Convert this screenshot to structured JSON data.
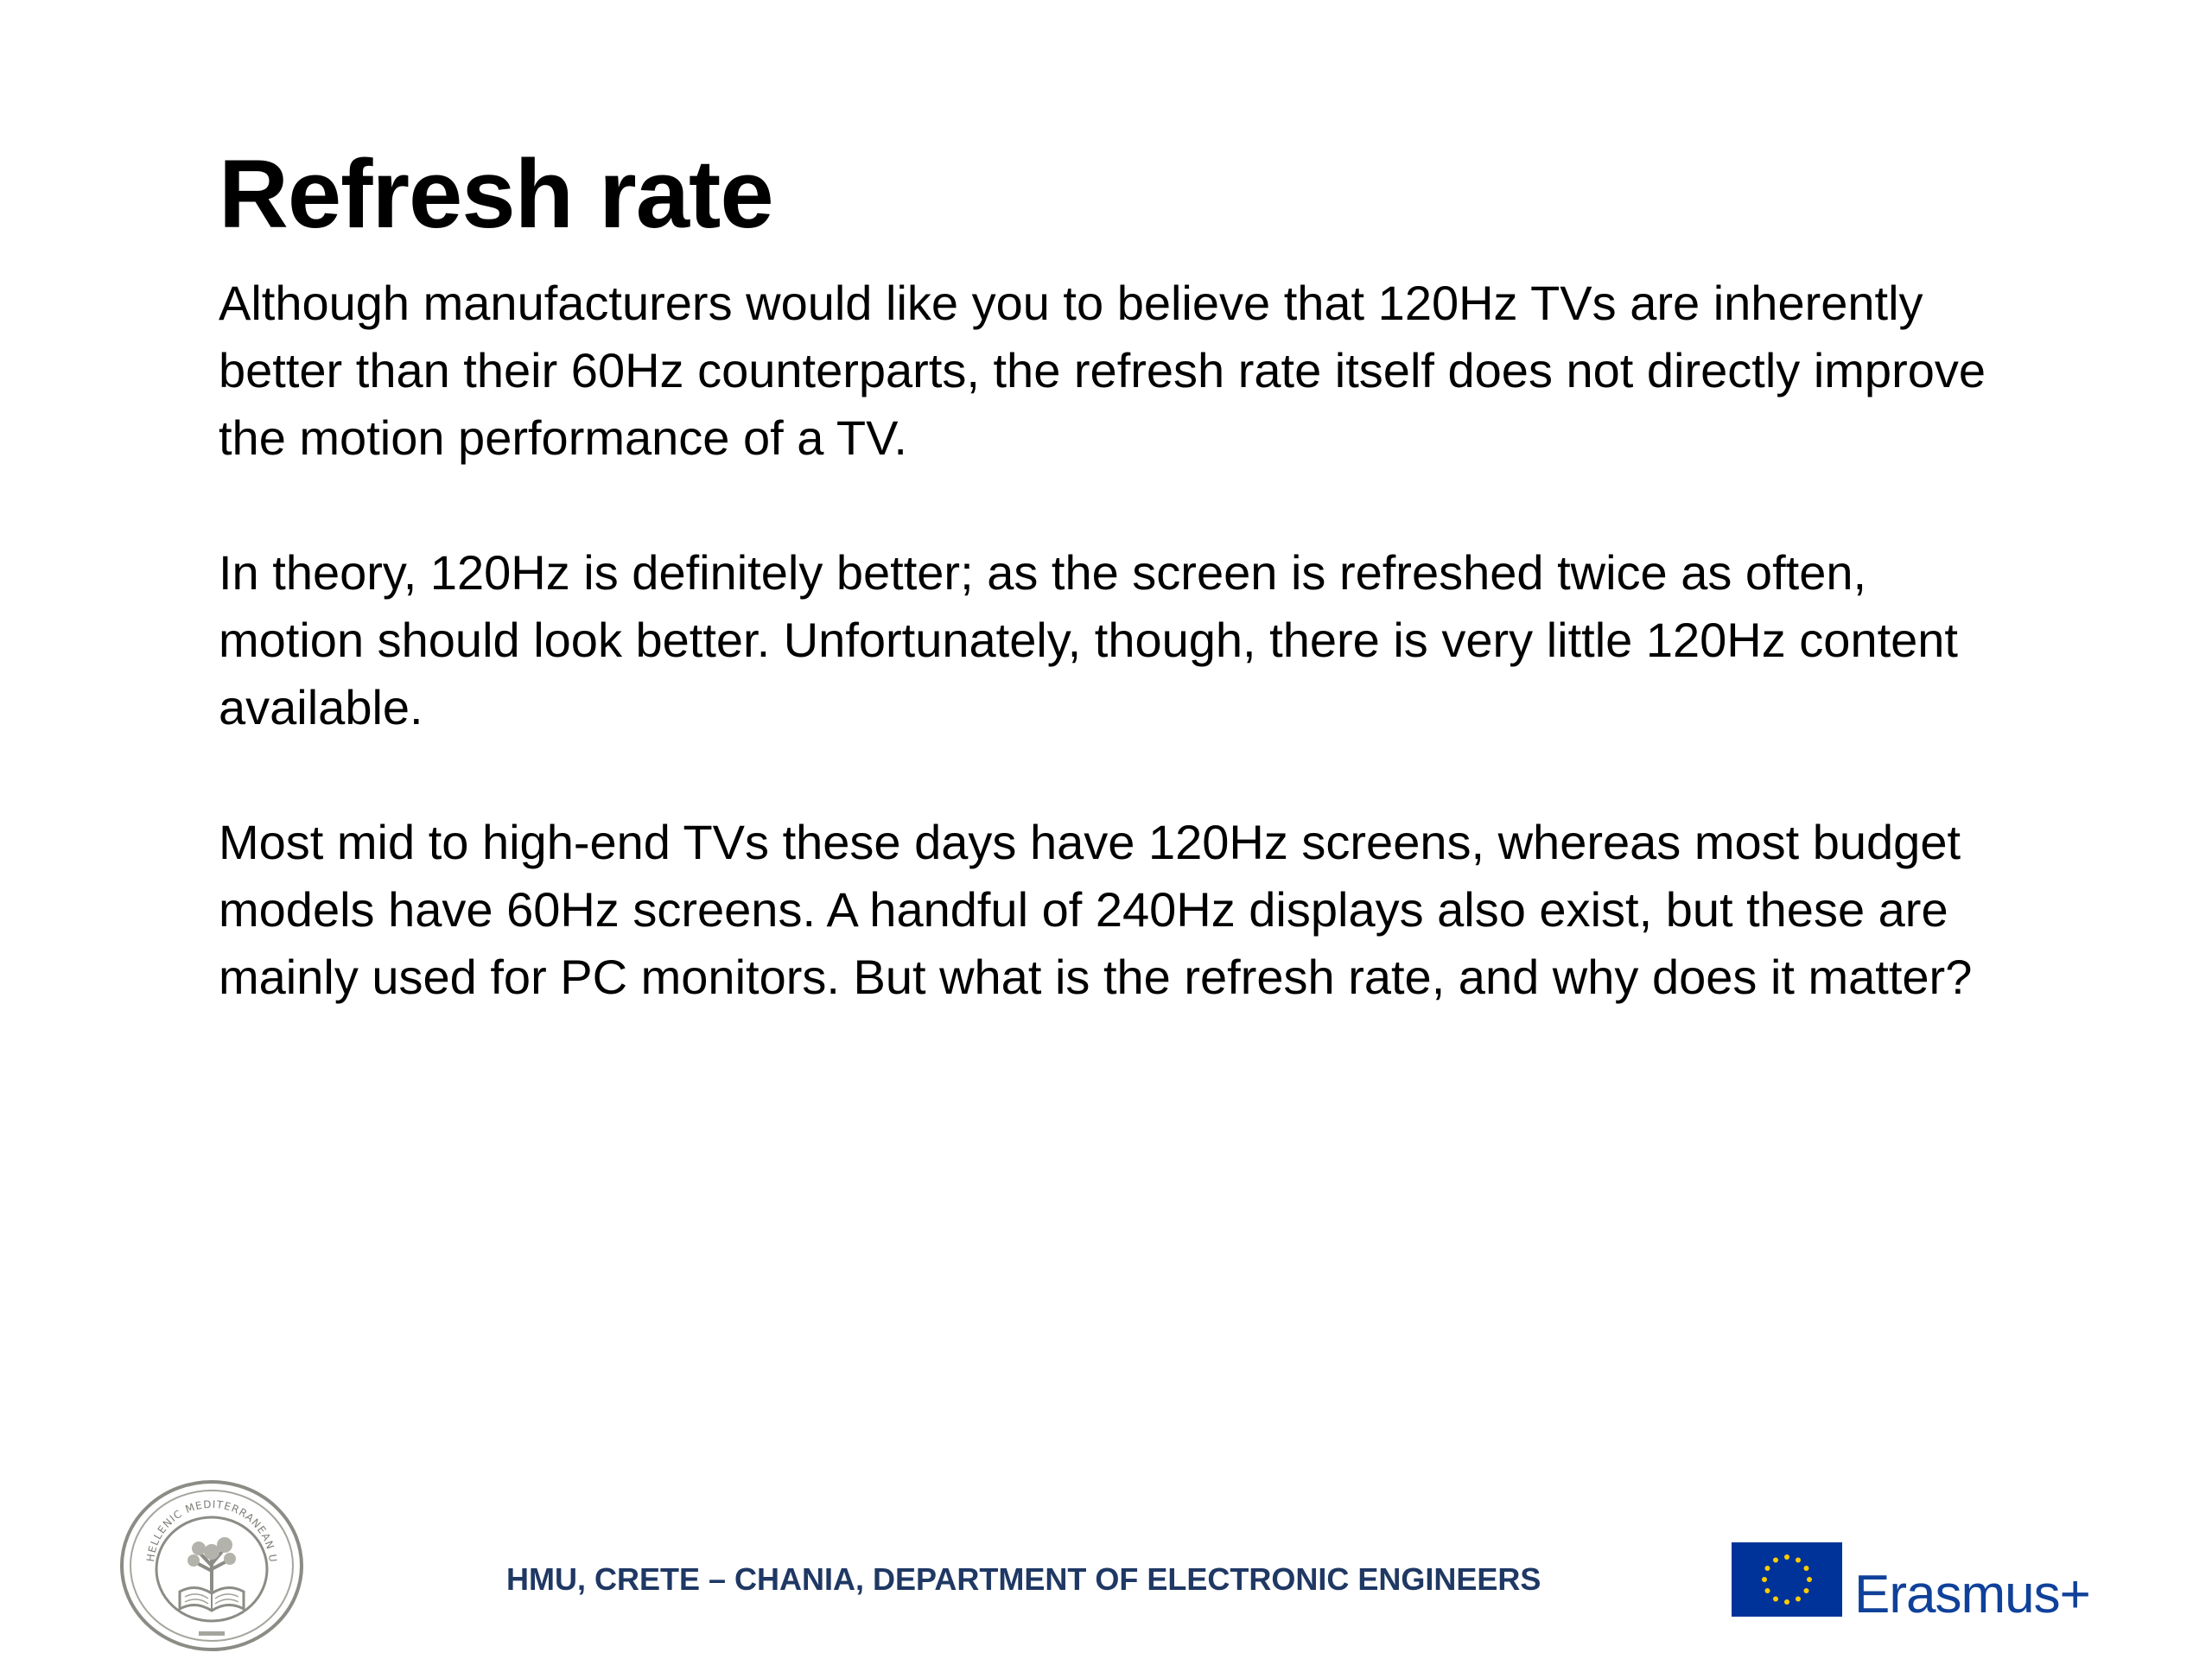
{
  "slide": {
    "title": "Refresh rate",
    "paragraphs": [
      "Although manufacturers would like you to believe that 120Hz TVs are inherently better than their 60Hz counterparts, the refresh rate itself does not directly improve the motion performance of a TV.",
      "In theory, 120Hz is definitely better; as the screen is refreshed twice as often, motion should look better. Unfortunately, though, there is very little 120Hz content available.",
      "Most mid to high-end TVs these days have 120Hz screens, whereas most budget models have 60Hz screens. A handful of 240Hz displays also exist, but these are mainly used for PC monitors. But what is the refresh rate, and why does it matter?"
    ]
  },
  "footer": {
    "text": "HMU, CRETE – CHANIA, DEPARTMENT OF ELECTRONIC ENGINEERS",
    "university_seal_text": "HELLENIC MEDITERRANEAN UNIVERSITY",
    "erasmus_label": "Erasmus+"
  },
  "colors": {
    "footer_text": "#1f3864",
    "eu_flag_blue": "#003399",
    "eu_stars": "#ffcc00",
    "seal_line": "#8c8c86",
    "erasmus_text": "#10419a"
  },
  "icons": {
    "seal": "university-seal-icon",
    "flag": "eu-flag-icon"
  }
}
